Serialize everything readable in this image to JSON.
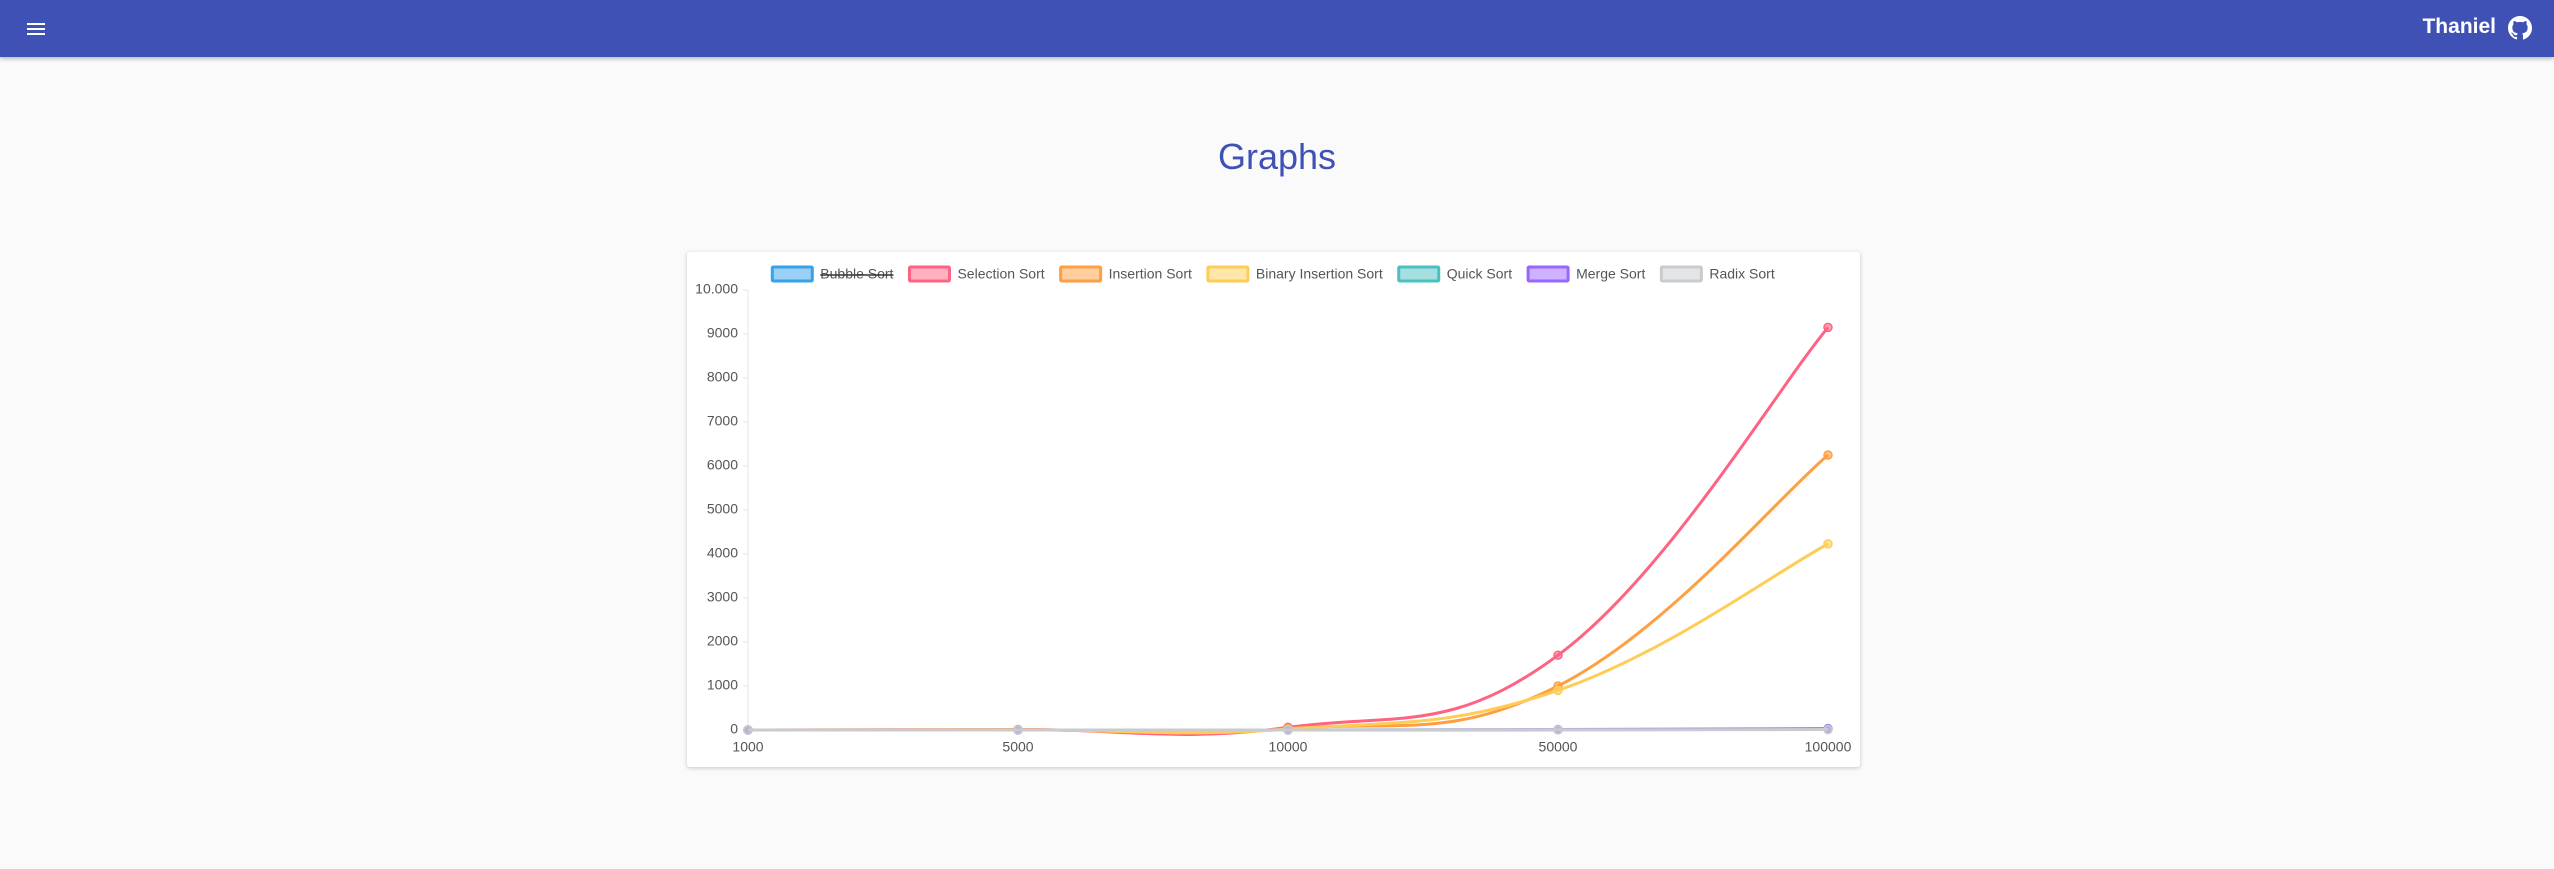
{
  "header": {
    "brand": "Thaniel"
  },
  "page": {
    "title": "Graphs"
  },
  "chart_data": {
    "type": "line",
    "categories": [
      "1000",
      "5000",
      "10000",
      "50000",
      "100000"
    ],
    "series": [
      {
        "name": "Bubble Sort",
        "color": "#36a2eb",
        "hidden": true,
        "values": [
          null,
          null,
          null,
          null,
          null
        ]
      },
      {
        "name": "Selection Sort",
        "color": "#ff6384",
        "values": [
          0,
          10,
          60,
          1700,
          9150
        ]
      },
      {
        "name": "Insertion Sort",
        "color": "#ff9f40",
        "values": [
          0,
          5,
          30,
          1000,
          6250
        ]
      },
      {
        "name": "Binary Insertion Sort",
        "color": "#ffcd56",
        "values": [
          0,
          5,
          20,
          900,
          4230
        ]
      },
      {
        "name": "Quick Sort",
        "color": "#4bc0c0",
        "values": [
          0,
          0,
          0,
          5,
          15
        ]
      },
      {
        "name": "Merge Sort",
        "color": "#9966ff",
        "values": [
          0,
          0,
          0,
          10,
          30
        ]
      },
      {
        "name": "Radix Sort",
        "color": "#c9cbcf",
        "values": [
          0,
          0,
          0,
          5,
          10
        ]
      }
    ],
    "ylim": [
      0,
      10000
    ],
    "yticks": [
      0,
      1000,
      2000,
      3000,
      4000,
      5000,
      6000,
      7000,
      8000,
      9000,
      {
        "value": 10000,
        "label": "10.000"
      }
    ],
    "grid": false,
    "legend": "top"
  }
}
